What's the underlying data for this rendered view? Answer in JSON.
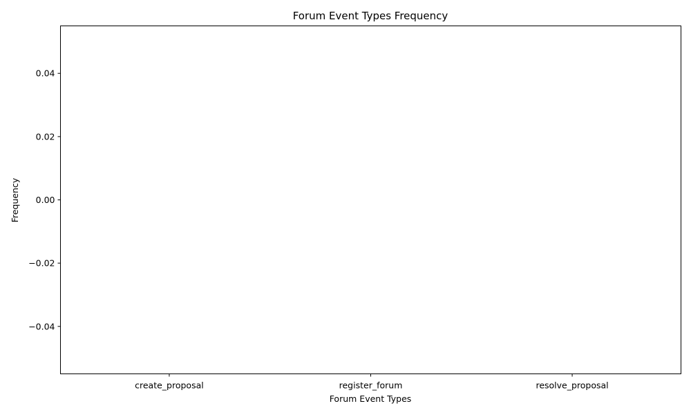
{
  "chart_data": {
    "type": "bar",
    "title": "Forum Event Types Frequency",
    "xlabel": "Forum Event Types",
    "ylabel": "Frequency",
    "categories": [
      "create_proposal",
      "register_forum",
      "resolve_proposal"
    ],
    "values": [
      0,
      0,
      0
    ],
    "ylim": [
      -0.055,
      0.055
    ],
    "yticks": [
      -0.04,
      -0.02,
      0.0,
      0.02,
      0.04
    ],
    "ytick_labels": [
      "−0.04",
      "−0.02",
      "0.00",
      "0.02",
      "0.04"
    ],
    "grid": false,
    "bar_color": "#1f77b4"
  }
}
